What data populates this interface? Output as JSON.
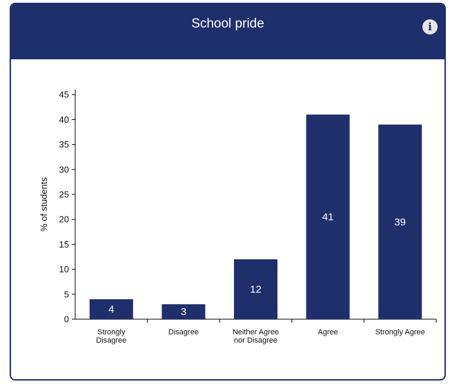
{
  "chart_data": {
    "type": "bar",
    "title": "School pride",
    "categories": [
      [
        "Strongly",
        "Disagree"
      ],
      [
        "Disagree"
      ],
      [
        "Neither Agree",
        "nor Disagree"
      ],
      [
        "Agree"
      ],
      [
        "Strongly Agree"
      ]
    ],
    "values": [
      4,
      3,
      12,
      41,
      39
    ],
    "xlabel": "",
    "ylabel": "% of students",
    "ylim": [
      0,
      46
    ],
    "yticks": [
      0,
      5,
      10,
      15,
      20,
      25,
      30,
      35,
      40,
      45
    ],
    "grid": false,
    "bar_color": "#1f2f6b"
  },
  "header": {
    "info_icon": "info-icon",
    "info_glyph": "i"
  }
}
